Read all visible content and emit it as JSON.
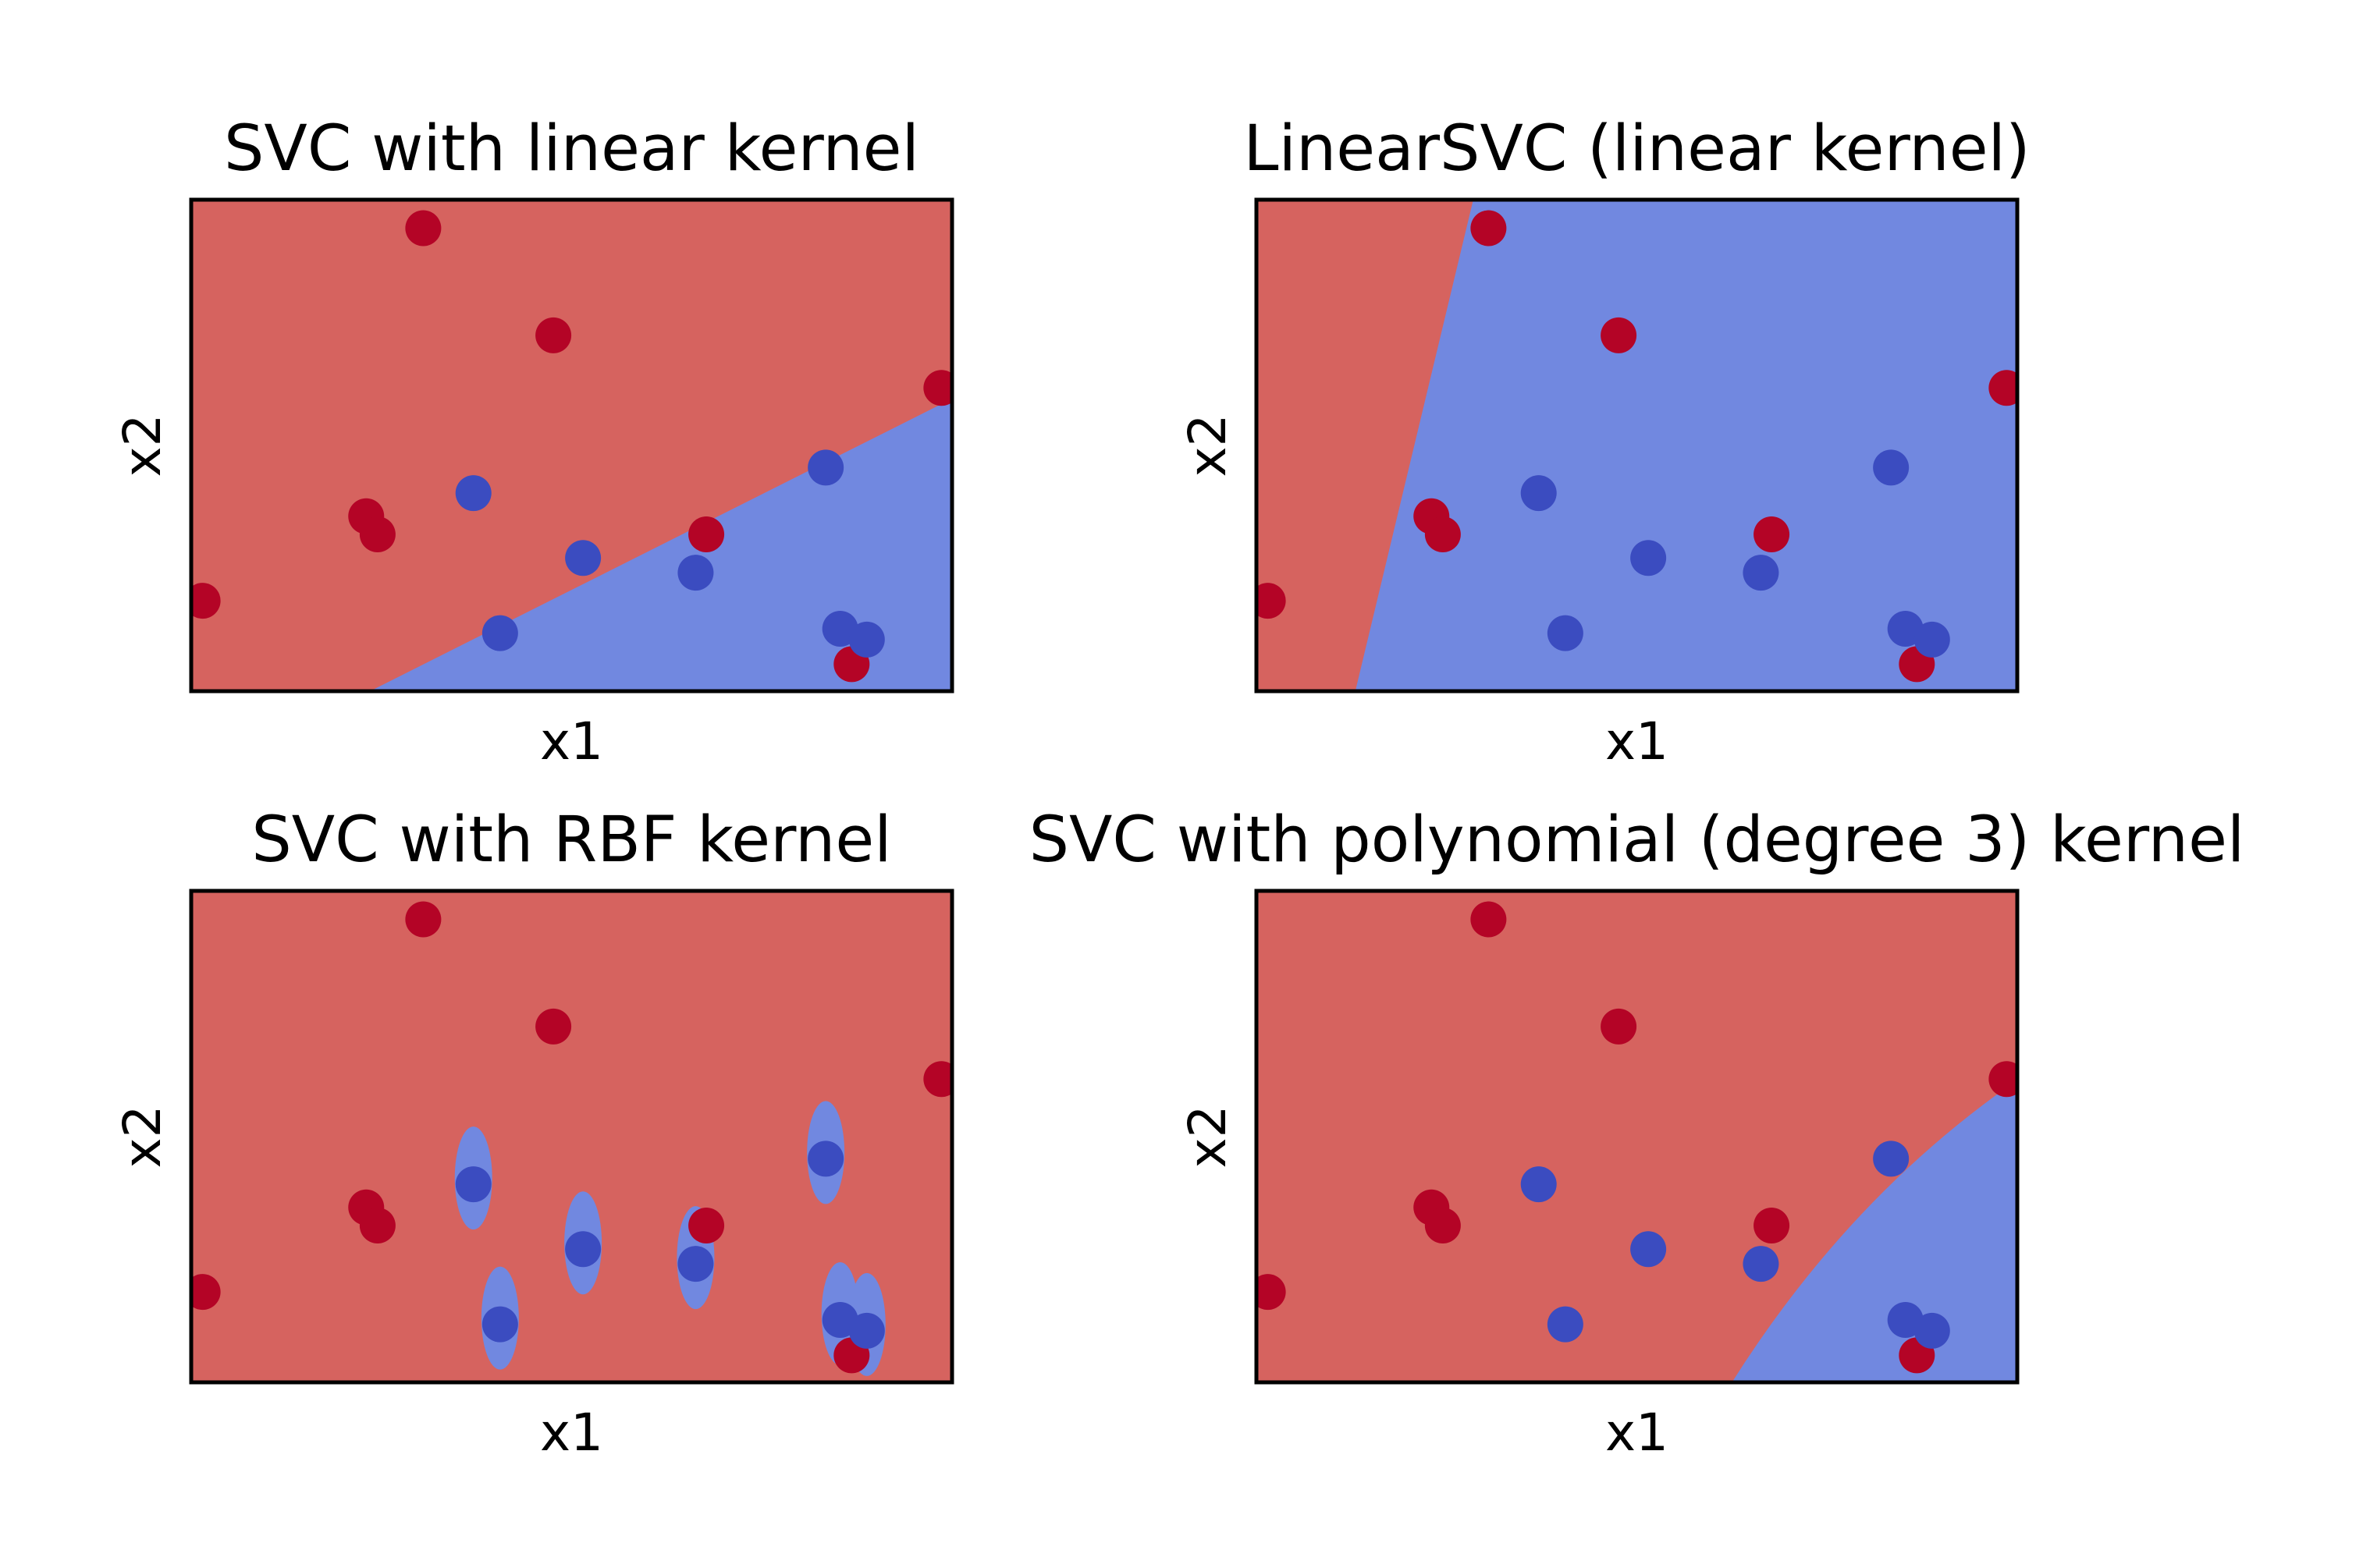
{
  "colors": {
    "region_red": "#d6635f",
    "region_blue": "#7188e0",
    "point_red": "#b40426",
    "point_blue": "#3b4cc0",
    "frame": "#000000"
  },
  "chart_data": [
    {
      "type": "scatter",
      "title": "SVC with linear kernel",
      "xlabel": "x1",
      "ylabel": "x2",
      "xlim": [
        0,
        10
      ],
      "ylim": [
        0,
        10
      ],
      "ticks": "none",
      "points": [
        {
          "x": 3.05,
          "y": 9.42,
          "class": "red"
        },
        {
          "x": 4.76,
          "y": 7.24,
          "class": "red"
        },
        {
          "x": 9.86,
          "y": 6.17,
          "class": "red"
        },
        {
          "x": 2.3,
          "y": 3.56,
          "class": "red"
        },
        {
          "x": 2.45,
          "y": 3.19,
          "class": "red"
        },
        {
          "x": 6.77,
          "y": 3.19,
          "class": "red"
        },
        {
          "x": 0.15,
          "y": 1.84,
          "class": "red"
        },
        {
          "x": 8.68,
          "y": 0.55,
          "class": "red"
        },
        {
          "x": 3.71,
          "y": 4.03,
          "class": "blue"
        },
        {
          "x": 8.34,
          "y": 4.55,
          "class": "blue"
        },
        {
          "x": 5.15,
          "y": 2.71,
          "class": "blue"
        },
        {
          "x": 6.63,
          "y": 2.41,
          "class": "blue"
        },
        {
          "x": 4.06,
          "y": 1.18,
          "class": "blue"
        },
        {
          "x": 8.53,
          "y": 1.27,
          "class": "blue"
        },
        {
          "x": 8.88,
          "y": 1.05,
          "class": "blue"
        }
      ]
    },
    {
      "type": "scatter",
      "title": "LinearSVC (linear kernel)",
      "xlabel": "x1",
      "ylabel": "x2",
      "xlim": [
        0,
        10
      ],
      "ylim": [
        0,
        10
      ],
      "ticks": "none",
      "points": [
        {
          "x": 3.05,
          "y": 9.42,
          "class": "red"
        },
        {
          "x": 4.76,
          "y": 7.24,
          "class": "red"
        },
        {
          "x": 9.86,
          "y": 6.17,
          "class": "red"
        },
        {
          "x": 2.3,
          "y": 3.56,
          "class": "red"
        },
        {
          "x": 2.45,
          "y": 3.19,
          "class": "red"
        },
        {
          "x": 6.77,
          "y": 3.19,
          "class": "red"
        },
        {
          "x": 0.15,
          "y": 1.84,
          "class": "red"
        },
        {
          "x": 8.68,
          "y": 0.55,
          "class": "red"
        },
        {
          "x": 3.71,
          "y": 4.03,
          "class": "blue"
        },
        {
          "x": 8.34,
          "y": 4.55,
          "class": "blue"
        },
        {
          "x": 5.15,
          "y": 2.71,
          "class": "blue"
        },
        {
          "x": 6.63,
          "y": 2.41,
          "class": "blue"
        },
        {
          "x": 4.06,
          "y": 1.18,
          "class": "blue"
        },
        {
          "x": 8.53,
          "y": 1.27,
          "class": "blue"
        },
        {
          "x": 8.88,
          "y": 1.05,
          "class": "blue"
        }
      ]
    },
    {
      "type": "scatter",
      "title": "SVC with RBF kernel",
      "xlabel": "x1",
      "ylabel": "x2",
      "xlim": [
        0,
        10
      ],
      "ylim": [
        0,
        10
      ],
      "ticks": "none",
      "points": [
        {
          "x": 3.05,
          "y": 9.42,
          "class": "red"
        },
        {
          "x": 4.76,
          "y": 7.24,
          "class": "red"
        },
        {
          "x": 9.86,
          "y": 6.17,
          "class": "red"
        },
        {
          "x": 2.3,
          "y": 3.56,
          "class": "red"
        },
        {
          "x": 2.45,
          "y": 3.19,
          "class": "red"
        },
        {
          "x": 6.77,
          "y": 3.19,
          "class": "red"
        },
        {
          "x": 0.15,
          "y": 1.84,
          "class": "red"
        },
        {
          "x": 8.68,
          "y": 0.55,
          "class": "red"
        },
        {
          "x": 3.71,
          "y": 4.03,
          "class": "blue"
        },
        {
          "x": 8.34,
          "y": 4.55,
          "class": "blue"
        },
        {
          "x": 5.15,
          "y": 2.71,
          "class": "blue"
        },
        {
          "x": 6.63,
          "y": 2.41,
          "class": "blue"
        },
        {
          "x": 4.06,
          "y": 1.18,
          "class": "blue"
        },
        {
          "x": 8.53,
          "y": 1.27,
          "class": "blue"
        },
        {
          "x": 8.88,
          "y": 1.05,
          "class": "blue"
        }
      ]
    },
    {
      "type": "scatter",
      "title": "SVC with polynomial (degree 3) kernel",
      "xlabel": "x1",
      "ylabel": "x2",
      "xlim": [
        0,
        10
      ],
      "ylim": [
        0,
        10
      ],
      "ticks": "none",
      "points": [
        {
          "x": 3.05,
          "y": 9.42,
          "class": "red"
        },
        {
          "x": 4.76,
          "y": 7.24,
          "class": "red"
        },
        {
          "x": 9.86,
          "y": 6.17,
          "class": "red"
        },
        {
          "x": 2.3,
          "y": 3.56,
          "class": "red"
        },
        {
          "x": 2.45,
          "y": 3.19,
          "class": "red"
        },
        {
          "x": 6.77,
          "y": 3.19,
          "class": "red"
        },
        {
          "x": 0.15,
          "y": 1.84,
          "class": "red"
        },
        {
          "x": 8.68,
          "y": 0.55,
          "class": "red"
        },
        {
          "x": 3.71,
          "y": 4.03,
          "class": "blue"
        },
        {
          "x": 8.34,
          "y": 4.55,
          "class": "blue"
        },
        {
          "x": 5.15,
          "y": 2.71,
          "class": "blue"
        },
        {
          "x": 6.63,
          "y": 2.41,
          "class": "blue"
        },
        {
          "x": 4.06,
          "y": 1.18,
          "class": "blue"
        },
        {
          "x": 8.53,
          "y": 1.27,
          "class": "blue"
        },
        {
          "x": 8.88,
          "y": 1.05,
          "class": "blue"
        }
      ]
    }
  ]
}
